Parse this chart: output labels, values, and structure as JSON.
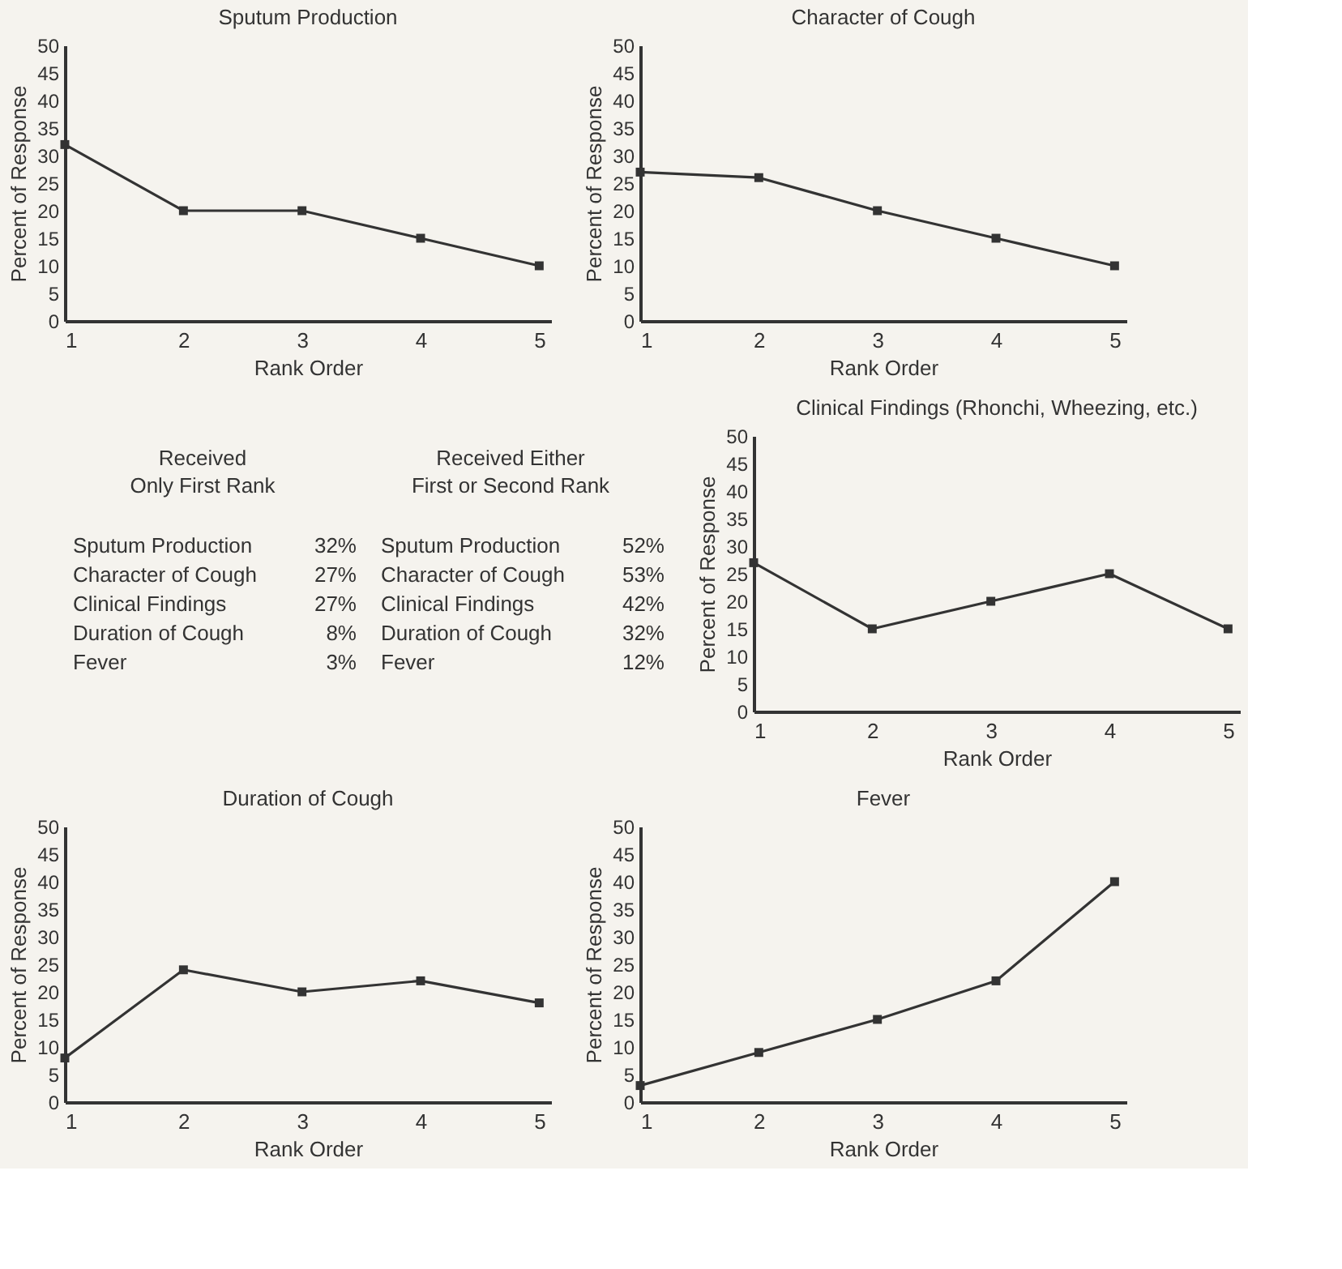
{
  "chart_data": [
    {
      "type": "line",
      "title": "Sputum Production",
      "xlabel": "Rank Order",
      "ylabel": "Percent of Response",
      "x": [
        1,
        2,
        3,
        4,
        5
      ],
      "xlim": [
        1,
        5.1
      ],
      "xticks": [
        1,
        2,
        3,
        4,
        5
      ],
      "ylim": [
        0,
        50
      ],
      "yticks": [
        0,
        5,
        10,
        15,
        20,
        25,
        30,
        35,
        40,
        45,
        50
      ],
      "marker": "square",
      "line_style": "solid",
      "series": [
        {
          "color": "#333333",
          "values": [
            32,
            20,
            20,
            15,
            10
          ]
        }
      ]
    },
    {
      "type": "line",
      "title": "Character of Cough",
      "xlabel": "Rank Order",
      "ylabel": "Percent of Response",
      "x": [
        1,
        2,
        3,
        4,
        5
      ],
      "xlim": [
        1,
        5.1
      ],
      "xticks": [
        1,
        2,
        3,
        4,
        5
      ],
      "ylim": [
        0,
        50
      ],
      "yticks": [
        0,
        5,
        10,
        15,
        20,
        25,
        30,
        35,
        40,
        45,
        50
      ],
      "marker": "square",
      "line_style": "solid",
      "series": [
        {
          "color": "#333333",
          "values": [
            27,
            26,
            20,
            15,
            10
          ]
        }
      ]
    },
    {
      "type": "other",
      "categories": [
        "Sputum Production",
        "Character of Cough",
        "Clinical Findings",
        "Duration of Cough",
        "Fever"
      ],
      "series": [
        {
          "name": "Received\nOnly First Rank",
          "values": [
            32,
            27,
            27,
            8,
            3
          ],
          "value_labels": [
            "32%",
            "27%",
            "27%",
            "8%",
            "3%"
          ]
        },
        {
          "name": "Received Either\nFirst or Second Rank",
          "values": [
            52,
            53,
            42,
            32,
            12
          ],
          "value_labels": [
            "52%",
            "53%",
            "42%",
            "32%",
            "12%"
          ]
        }
      ]
    },
    {
      "type": "line",
      "title": "Clinical Findings (Rhonchi, Wheezing, etc.)",
      "xlabel": "Rank Order",
      "ylabel": "Percent of Response",
      "x": [
        1,
        2,
        3,
        4,
        5
      ],
      "xlim": [
        1,
        5.1
      ],
      "xticks": [
        1,
        2,
        3,
        4,
        5
      ],
      "ylim": [
        0,
        50
      ],
      "yticks": [
        0,
        5,
        10,
        15,
        20,
        25,
        30,
        35,
        40,
        45,
        50
      ],
      "marker": "square",
      "line_style": "solid",
      "series": [
        {
          "color": "#333333",
          "values": [
            27,
            15,
            20,
            25,
            15
          ]
        }
      ]
    },
    {
      "type": "line",
      "title": "Duration of Cough",
      "xlabel": "Rank Order",
      "ylabel": "Percent of Response",
      "x": [
        1,
        2,
        3,
        4,
        5
      ],
      "xlim": [
        1,
        5.1
      ],
      "xticks": [
        1,
        2,
        3,
        4,
        5
      ],
      "ylim": [
        0,
        50
      ],
      "yticks": [
        0,
        5,
        10,
        15,
        20,
        25,
        30,
        35,
        40,
        45,
        50
      ],
      "marker": "square",
      "line_style": "solid",
      "series": [
        {
          "color": "#333333",
          "values": [
            8,
            24,
            20,
            22,
            18
          ]
        }
      ]
    },
    {
      "type": "line",
      "title": "Fever",
      "xlabel": "Rank Order",
      "ylabel": "Percent of Response",
      "x": [
        1,
        2,
        3,
        4,
        5
      ],
      "xlim": [
        1,
        5.1
      ],
      "xticks": [
        1,
        2,
        3,
        4,
        5
      ],
      "ylim": [
        0,
        50
      ],
      "yticks": [
        0,
        5,
        10,
        15,
        20,
        25,
        30,
        35,
        40,
        45,
        50
      ],
      "marker": "square",
      "line_style": "solid",
      "series": [
        {
          "color": "#333333",
          "values": [
            3,
            9,
            15,
            22,
            40
          ]
        }
      ]
    }
  ]
}
